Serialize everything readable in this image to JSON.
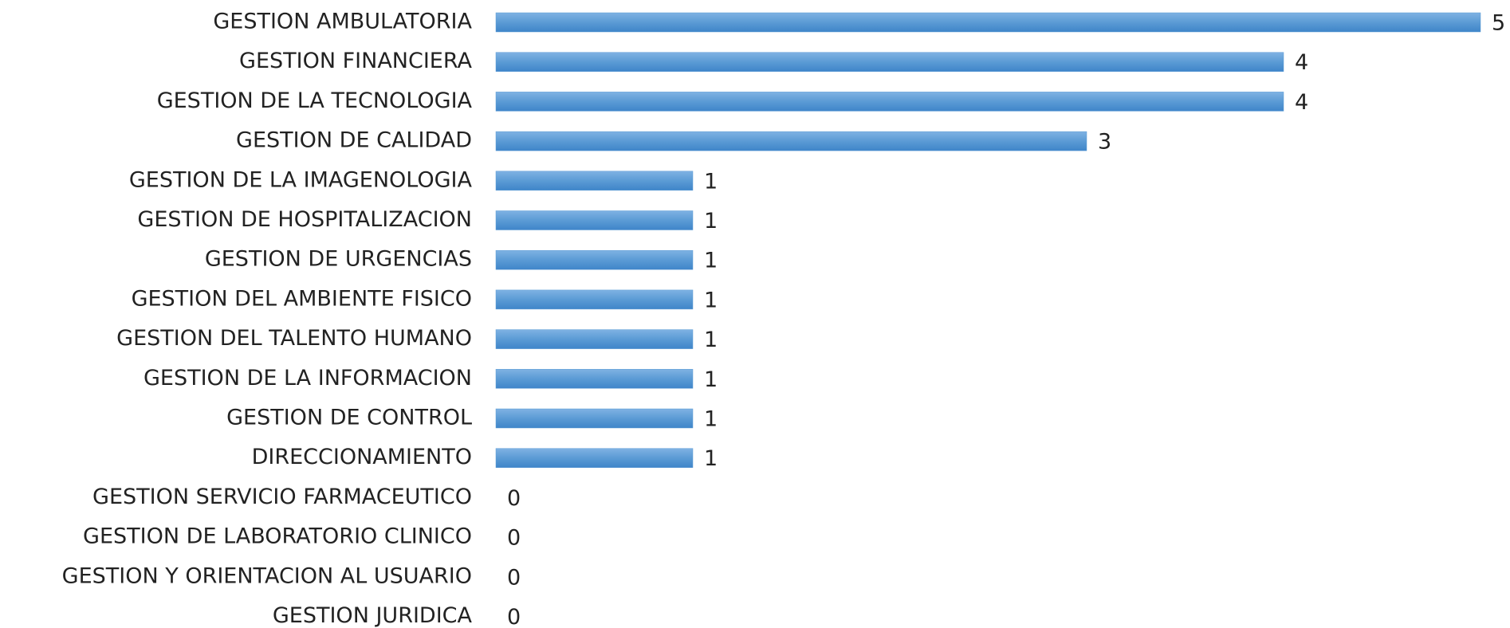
{
  "chart_data": {
    "type": "bar",
    "orientation": "horizontal",
    "categories": [
      "GESTION AMBULATORIA",
      "GESTION FINANCIERA",
      "GESTION DE LA TECNOLOGIA",
      "GESTION DE CALIDAD",
      "GESTION DE LA IMAGENOLOGIA",
      "GESTION DE HOSPITALIZACION",
      "GESTION DE URGENCIAS",
      "GESTION DEL AMBIENTE FISICO",
      "GESTION DEL TALENTO HUMANO",
      "GESTION DE LA INFORMACION",
      "GESTION DE CONTROL",
      "DIRECCIONAMIENTO",
      "GESTION SERVICIO FARMACEUTICO",
      "GESTION DE LABORATORIO CLINICO",
      "GESTION Y ORIENTACION AL USUARIO",
      "GESTION JURIDICA"
    ],
    "values": [
      5,
      4,
      4,
      3,
      1,
      1,
      1,
      1,
      1,
      1,
      1,
      1,
      0,
      0,
      0,
      0
    ],
    "color": "#5b9bd5"
  }
}
